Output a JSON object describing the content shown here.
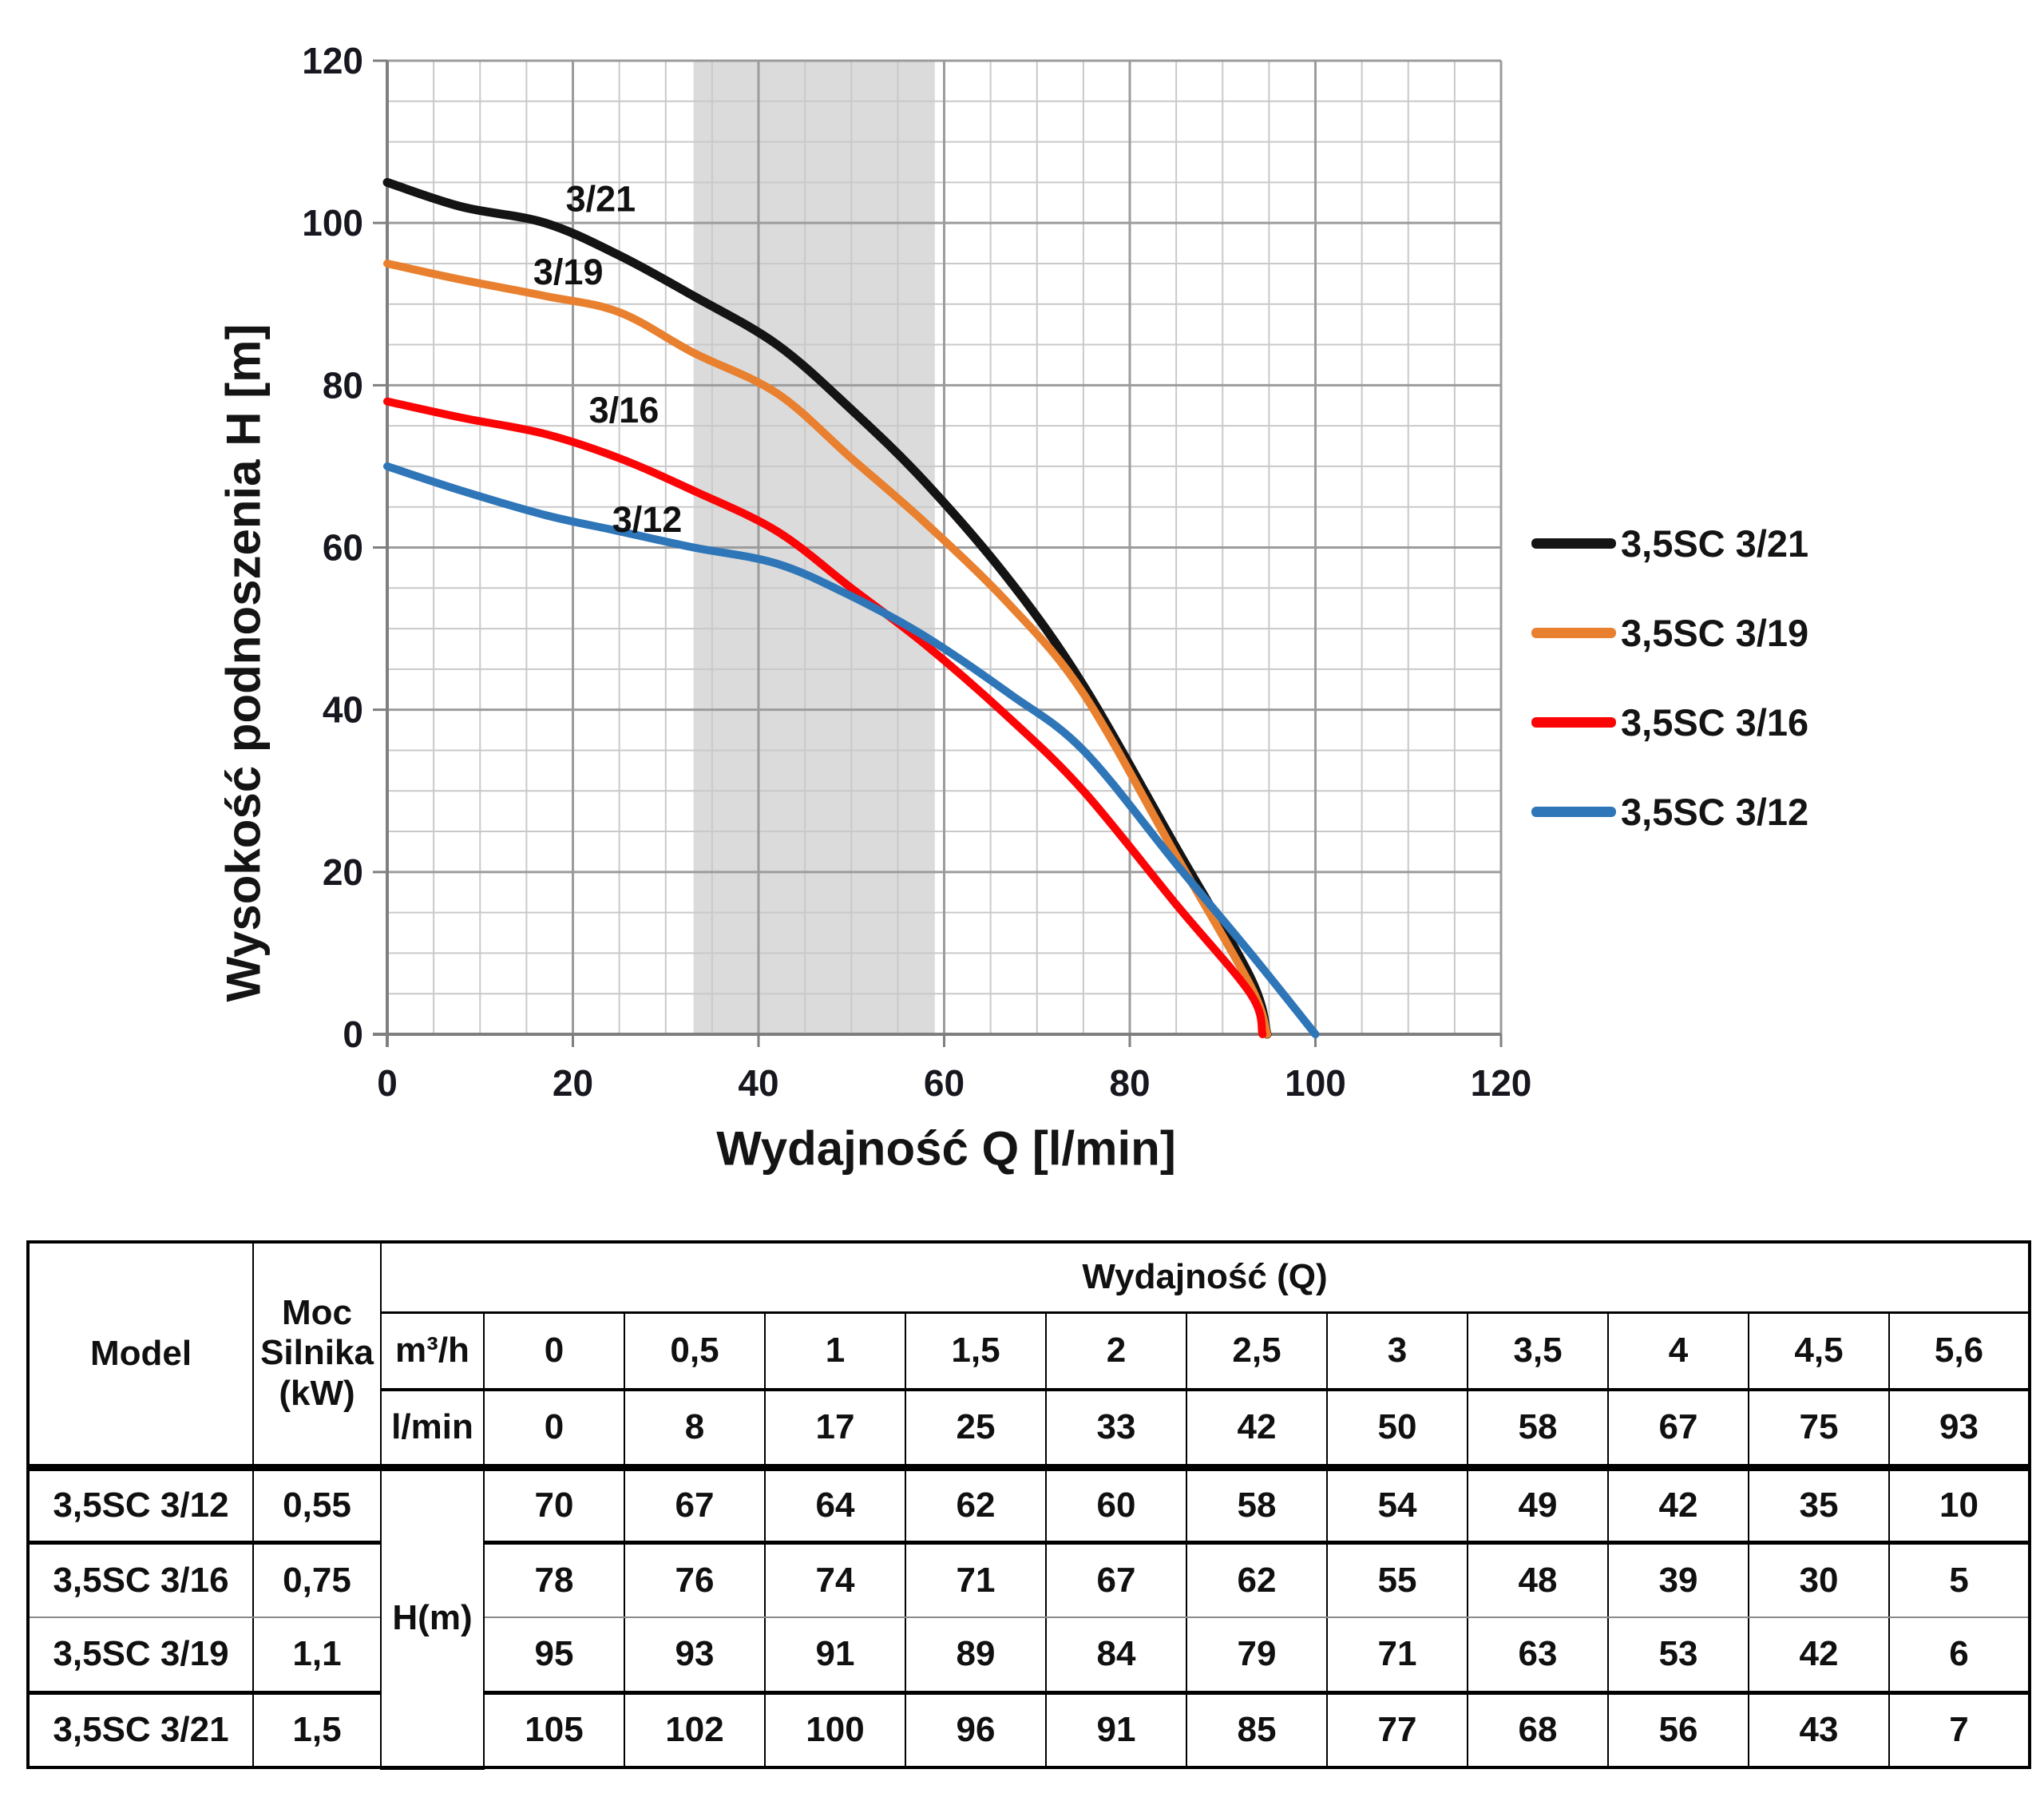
{
  "chart_data": {
    "type": "line",
    "title": "",
    "xlabel": "Wydajność Q [l/min]",
    "ylabel": "Wysokość podnoszenia H [m]",
    "xlim": [
      0,
      120
    ],
    "ylim": [
      0,
      120
    ],
    "xticks": [
      0,
      20,
      40,
      60,
      80,
      100,
      120
    ],
    "yticks": [
      0,
      20,
      40,
      60,
      80,
      100,
      120
    ],
    "minor_grid_step": 5,
    "grid": "on",
    "legend_position": "right",
    "shaded_band": {
      "x_from": 33,
      "x_to": 59,
      "color": "#dbdbdb"
    },
    "series": [
      {
        "name": "3,5SC 3/21",
        "color": "#141414",
        "curve_label": "3/21",
        "curve_label_at": [
          23,
          103
        ],
        "points": [
          [
            0,
            105
          ],
          [
            8,
            102
          ],
          [
            17,
            100
          ],
          [
            25,
            96
          ],
          [
            33,
            91
          ],
          [
            42,
            85
          ],
          [
            50,
            77
          ],
          [
            58,
            68
          ],
          [
            67,
            56
          ],
          [
            75,
            43
          ],
          [
            85,
            23
          ],
          [
            93,
            7
          ],
          [
            94.8,
            0
          ]
        ]
      },
      {
        "name": "3,5SC 3/19",
        "color": "#e8802f",
        "curve_label": "3/19",
        "curve_label_at": [
          19.5,
          94
        ],
        "points": [
          [
            0,
            95
          ],
          [
            8,
            93
          ],
          [
            17,
            91
          ],
          [
            25,
            89
          ],
          [
            33,
            84
          ],
          [
            42,
            79
          ],
          [
            50,
            71
          ],
          [
            58,
            63
          ],
          [
            67,
            53
          ],
          [
            75,
            42
          ],
          [
            85,
            22
          ],
          [
            93,
            6
          ],
          [
            94.8,
            0
          ]
        ]
      },
      {
        "name": "3,5SC 3/16",
        "color": "#fb0406",
        "curve_label": "3/16",
        "curve_label_at": [
          25.5,
          77
        ],
        "points": [
          [
            0,
            78
          ],
          [
            8,
            76
          ],
          [
            17,
            74
          ],
          [
            25,
            71
          ],
          [
            33,
            67
          ],
          [
            42,
            62
          ],
          [
            50,
            55
          ],
          [
            58,
            48
          ],
          [
            67,
            39
          ],
          [
            75,
            30
          ],
          [
            85,
            16
          ],
          [
            93,
            5
          ],
          [
            94.3,
            0
          ]
        ]
      },
      {
        "name": "3,5SC 3/12",
        "color": "#2f76b8",
        "curve_label": "3/12",
        "curve_label_at": [
          28,
          63.5
        ],
        "points": [
          [
            0,
            70
          ],
          [
            8,
            67
          ],
          [
            17,
            64
          ],
          [
            25,
            62
          ],
          [
            33,
            60
          ],
          [
            42,
            58
          ],
          [
            50,
            54
          ],
          [
            58,
            49
          ],
          [
            67,
            42
          ],
          [
            75,
            35
          ],
          [
            85,
            21
          ],
          [
            93,
            10
          ],
          [
            100,
            0
          ]
        ]
      }
    ]
  },
  "table": {
    "model_header": "Model",
    "power_header": "Moc Silnika (kW)",
    "flow_group_header": "Wydajność (Q)",
    "unit_m3h": "m³/h",
    "unit_lmin": "l/min",
    "h_unit_label": "H(m)",
    "m3h_values": [
      "0",
      "0,5",
      "1",
      "1,5",
      "2",
      "2,5",
      "3",
      "3,5",
      "4",
      "4,5",
      "5,6"
    ],
    "lmin_values": [
      "0",
      "8",
      "17",
      "25",
      "33",
      "42",
      "50",
      "58",
      "67",
      "75",
      "93"
    ],
    "highlighted_columns": [
      4,
      5,
      6,
      7
    ],
    "rows": [
      {
        "model": "3,5SC 3/12",
        "power": "0,55",
        "values": [
          "70",
          "67",
          "64",
          "62",
          "60",
          "58",
          "54",
          "49",
          "42",
          "35",
          "10"
        ]
      },
      {
        "model": "3,5SC 3/16",
        "power": "0,75",
        "values": [
          "78",
          "76",
          "74",
          "71",
          "67",
          "62",
          "55",
          "48",
          "39",
          "30",
          "5"
        ]
      },
      {
        "model": "3,5SC 3/19",
        "power": "1,1",
        "values": [
          "95",
          "93",
          "91",
          "89",
          "84",
          "79",
          "71",
          "63",
          "53",
          "42",
          "6"
        ]
      },
      {
        "model": "3,5SC 3/21",
        "power": "1,5",
        "values": [
          "105",
          "102",
          "100",
          "96",
          "91",
          "85",
          "77",
          "68",
          "56",
          "43",
          "7"
        ]
      }
    ]
  },
  "style": {
    "band_color": "#dbdbdb",
    "minor_grid_color": "#c9c9c9",
    "major_grid_color": "#9c9c9c",
    "axis_color": "#7f7f7f",
    "zebra_row_color": "#f1f1f1",
    "highlight_cell_color": "#ababab"
  }
}
